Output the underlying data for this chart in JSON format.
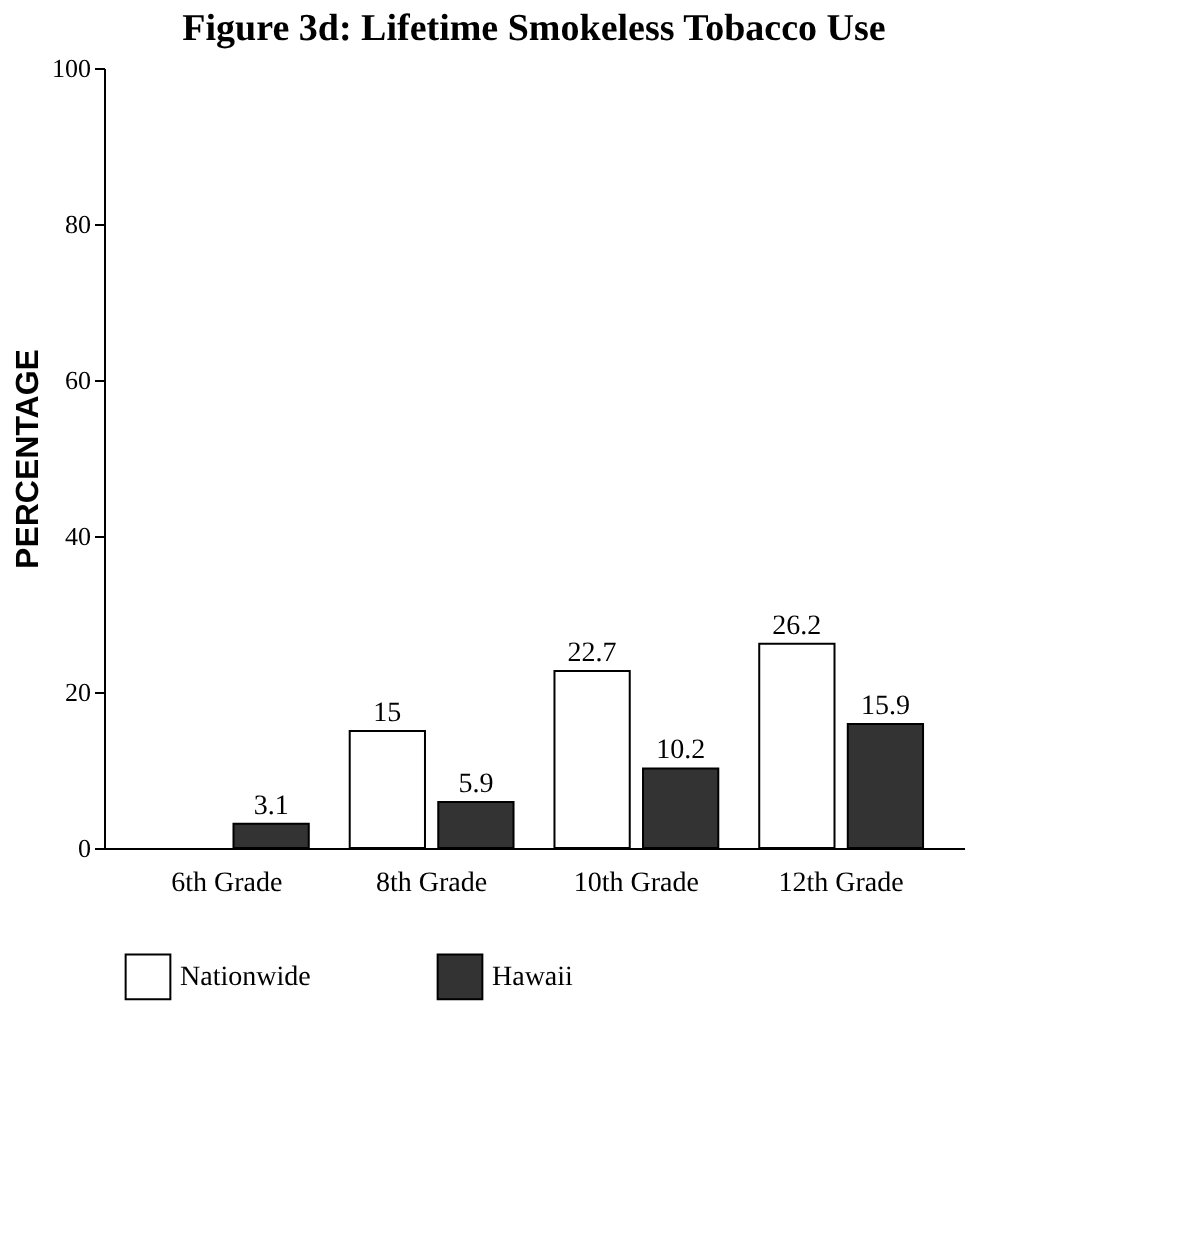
{
  "chart_data": {
    "type": "bar",
    "title": "Figure 3d: Lifetime Smokeless Tobacco Use",
    "ylabel": "PERCENTAGE",
    "categories": [
      "6th Grade",
      "8th Grade",
      "10th Grade",
      "12th Grade"
    ],
    "series": [
      {
        "name": "Nationwide",
        "color": "#ffffff",
        "values": [
          null,
          15,
          22.7,
          26.2
        ]
      },
      {
        "name": "Hawaii",
        "color": "#333333",
        "values": [
          3.1,
          5.9,
          10.2,
          15.9
        ]
      }
    ],
    "ylim": [
      0,
      100
    ],
    "yticks": [
      0,
      20,
      40,
      60,
      80,
      100
    ],
    "grid": false,
    "legend": "bottom",
    "data_labels": true
  }
}
